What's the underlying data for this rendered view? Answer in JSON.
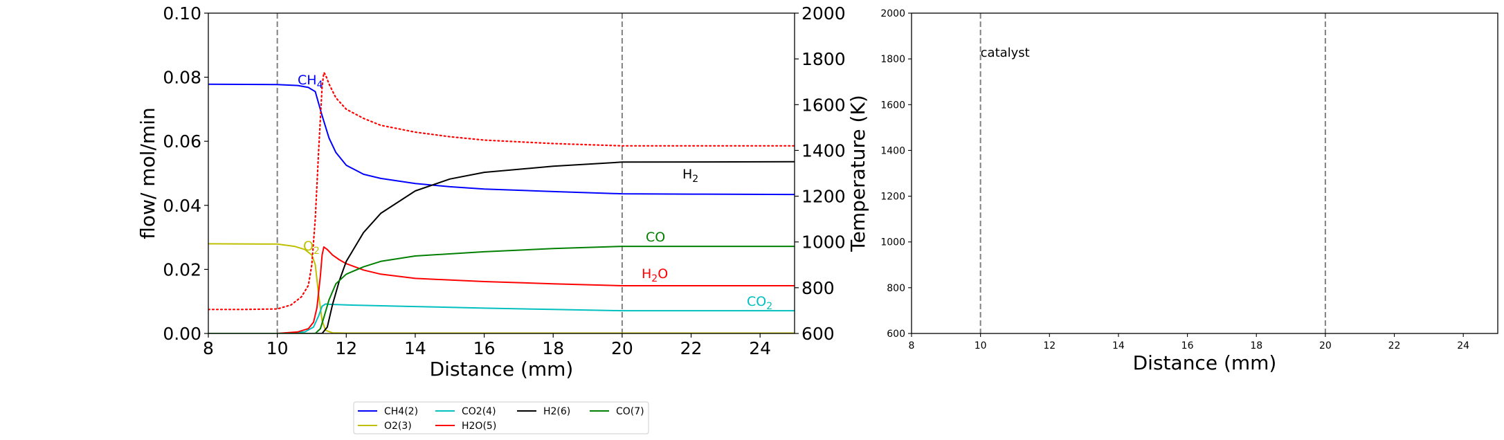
{
  "chart_data": [
    {
      "type": "line",
      "xlabel": "Distance (mm)",
      "ylabel": "flow/ mol/min",
      "y2label": "Temperature (K)",
      "xlim": [
        8,
        25
      ],
      "ylim": [
        0,
        0.1
      ],
      "y2lim": [
        600,
        2000
      ],
      "xticks": [
        "8",
        "10",
        "12",
        "14",
        "16",
        "18",
        "20",
        "22",
        "24"
      ],
      "yticks": [
        "0.00",
        "0.02",
        "0.04",
        "0.06",
        "0.08",
        "0.10"
      ],
      "y2ticks": [
        "600",
        "800",
        "1000",
        "1200",
        "1400",
        "1600",
        "1800",
        "2000"
      ],
      "vlines": [
        10,
        20
      ],
      "series": [
        {
          "name": "CH4(2)",
          "color": "#0000ff",
          "style": "solid",
          "x": [
            8,
            10,
            10.6,
            10.9,
            11.1,
            11.3,
            11.5,
            11.7,
            12,
            12.5,
            13,
            14,
            15,
            16,
            18,
            20,
            22,
            25
          ],
          "y": [
            0.0778,
            0.0777,
            0.0774,
            0.0768,
            0.0755,
            0.068,
            0.061,
            0.0565,
            0.0525,
            0.0497,
            0.0484,
            0.0468,
            0.0458,
            0.0451,
            0.0443,
            0.0436,
            0.0435,
            0.0434
          ]
        },
        {
          "name": "O2(3)",
          "color": "#bfbf00",
          "style": "solid",
          "x": [
            8,
            10,
            10.5,
            10.8,
            11,
            11.1,
            11.2,
            11.3,
            11.4,
            11.6,
            12,
            25
          ],
          "y": [
            0.028,
            0.0279,
            0.0272,
            0.0262,
            0.0245,
            0.0215,
            0.012,
            0.004,
            0.001,
            0.0002,
            0.0001,
            0.0001
          ]
        },
        {
          "name": "CO2(4)",
          "color": "#00bfbf",
          "style": "solid",
          "x": [
            8,
            10,
            10.8,
            11.05,
            11.2,
            11.3,
            11.4,
            11.5,
            12,
            14,
            16,
            18,
            20,
            25
          ],
          "y": [
            0.0,
            0.0,
            0.0005,
            0.002,
            0.0055,
            0.0085,
            0.0092,
            0.0091,
            0.0089,
            0.0084,
            0.0079,
            0.0075,
            0.0071,
            0.0071
          ]
        },
        {
          "name": "H2O(5)",
          "color": "#ff0000",
          "style": "solid",
          "x": [
            8,
            10,
            10.6,
            10.9,
            11.05,
            11.15,
            11.25,
            11.3,
            11.35,
            11.45,
            11.6,
            11.8,
            12,
            12.5,
            13,
            14,
            16,
            18,
            20,
            25
          ],
          "y": [
            0.0,
            0.0,
            0.0005,
            0.0015,
            0.0035,
            0.008,
            0.018,
            0.0245,
            0.027,
            0.0262,
            0.0245,
            0.023,
            0.0218,
            0.0198,
            0.0185,
            0.0172,
            0.0162,
            0.0155,
            0.0149,
            0.0149
          ]
        },
        {
          "name": "H2(6)",
          "color": "#000000",
          "style": "solid",
          "x": [
            8,
            11,
            11.3,
            11.45,
            11.6,
            11.8,
            12,
            12.5,
            13,
            14,
            15,
            16,
            18,
            20,
            25
          ],
          "y": [
            0.0,
            0.0,
            0.0,
            0.002,
            0.009,
            0.0165,
            0.0225,
            0.0315,
            0.0375,
            0.0445,
            0.0482,
            0.0503,
            0.0522,
            0.0535,
            0.0536
          ]
        },
        {
          "name": "CO(7)",
          "color": "#008000",
          "style": "solid",
          "x": [
            8,
            11.1,
            11.25,
            11.35,
            11.5,
            11.7,
            12,
            12.5,
            13,
            14,
            16,
            18,
            20,
            25
          ],
          "y": [
            0.0,
            0.0,
            0.0015,
            0.005,
            0.0105,
            0.0155,
            0.0185,
            0.0208,
            0.0225,
            0.0242,
            0.0255,
            0.0265,
            0.0272,
            0.0272
          ]
        },
        {
          "name": "",
          "color": "#ff0000",
          "style": "dotted",
          "axis": "y2",
          "x": [
            8,
            9,
            10,
            10.4,
            10.7,
            10.9,
            11.0,
            11.1,
            11.2,
            11.3,
            11.35,
            11.4,
            11.5,
            11.7,
            12,
            12.5,
            13,
            14,
            15,
            16,
            18,
            20,
            22,
            25
          ],
          "y": [
            705,
            705,
            707,
            725,
            760,
            810,
            900,
            1100,
            1400,
            1680,
            1740,
            1730,
            1690,
            1630,
            1580,
            1540,
            1510,
            1480,
            1460,
            1445,
            1430,
            1420,
            1420,
            1420
          ]
        }
      ],
      "annotations": [
        {
          "text": "CH",
          "sub": "4",
          "color": "#0000ff"
        },
        {
          "text": "O",
          "sub": "2",
          "color": "#bfbf00"
        },
        {
          "text": "H",
          "sub": "2",
          "color": "#000000"
        },
        {
          "text": "CO",
          "sub": "",
          "color": "#008000"
        },
        {
          "text": "H",
          "sub": "2",
          "tail": "O",
          "color": "#ff0000"
        },
        {
          "text": "CO",
          "sub": "2",
          "color": "#00bfbf"
        }
      ],
      "legend": {
        "placement": "bottom-center",
        "entries": [
          {
            "label": "CH4(2)",
            "color": "#0000ff"
          },
          {
            "label": "CO2(4)",
            "color": "#00bfbf"
          },
          {
            "label": "H2(6)",
            "color": "#000000"
          },
          {
            "label": "CO(7)",
            "color": "#008000"
          },
          {
            "label": "O2(3)",
            "color": "#bfbf00"
          },
          {
            "label": "H2O(5)",
            "color": "#ff0000"
          }
        ]
      }
    },
    {
      "type": "line",
      "xlabel": "Distance (mm)",
      "xlim": [
        8,
        25
      ],
      "ylim": [
        600,
        2000
      ],
      "xticks": [
        "8",
        "10",
        "12",
        "14",
        "16",
        "18",
        "20",
        "22",
        "24"
      ],
      "yticks": [
        "600",
        "800",
        "1000",
        "1200",
        "1400",
        "1600",
        "1800",
        "2000"
      ],
      "vlines": [
        10,
        20
      ],
      "annotation": "catalyst",
      "series": []
    }
  ]
}
